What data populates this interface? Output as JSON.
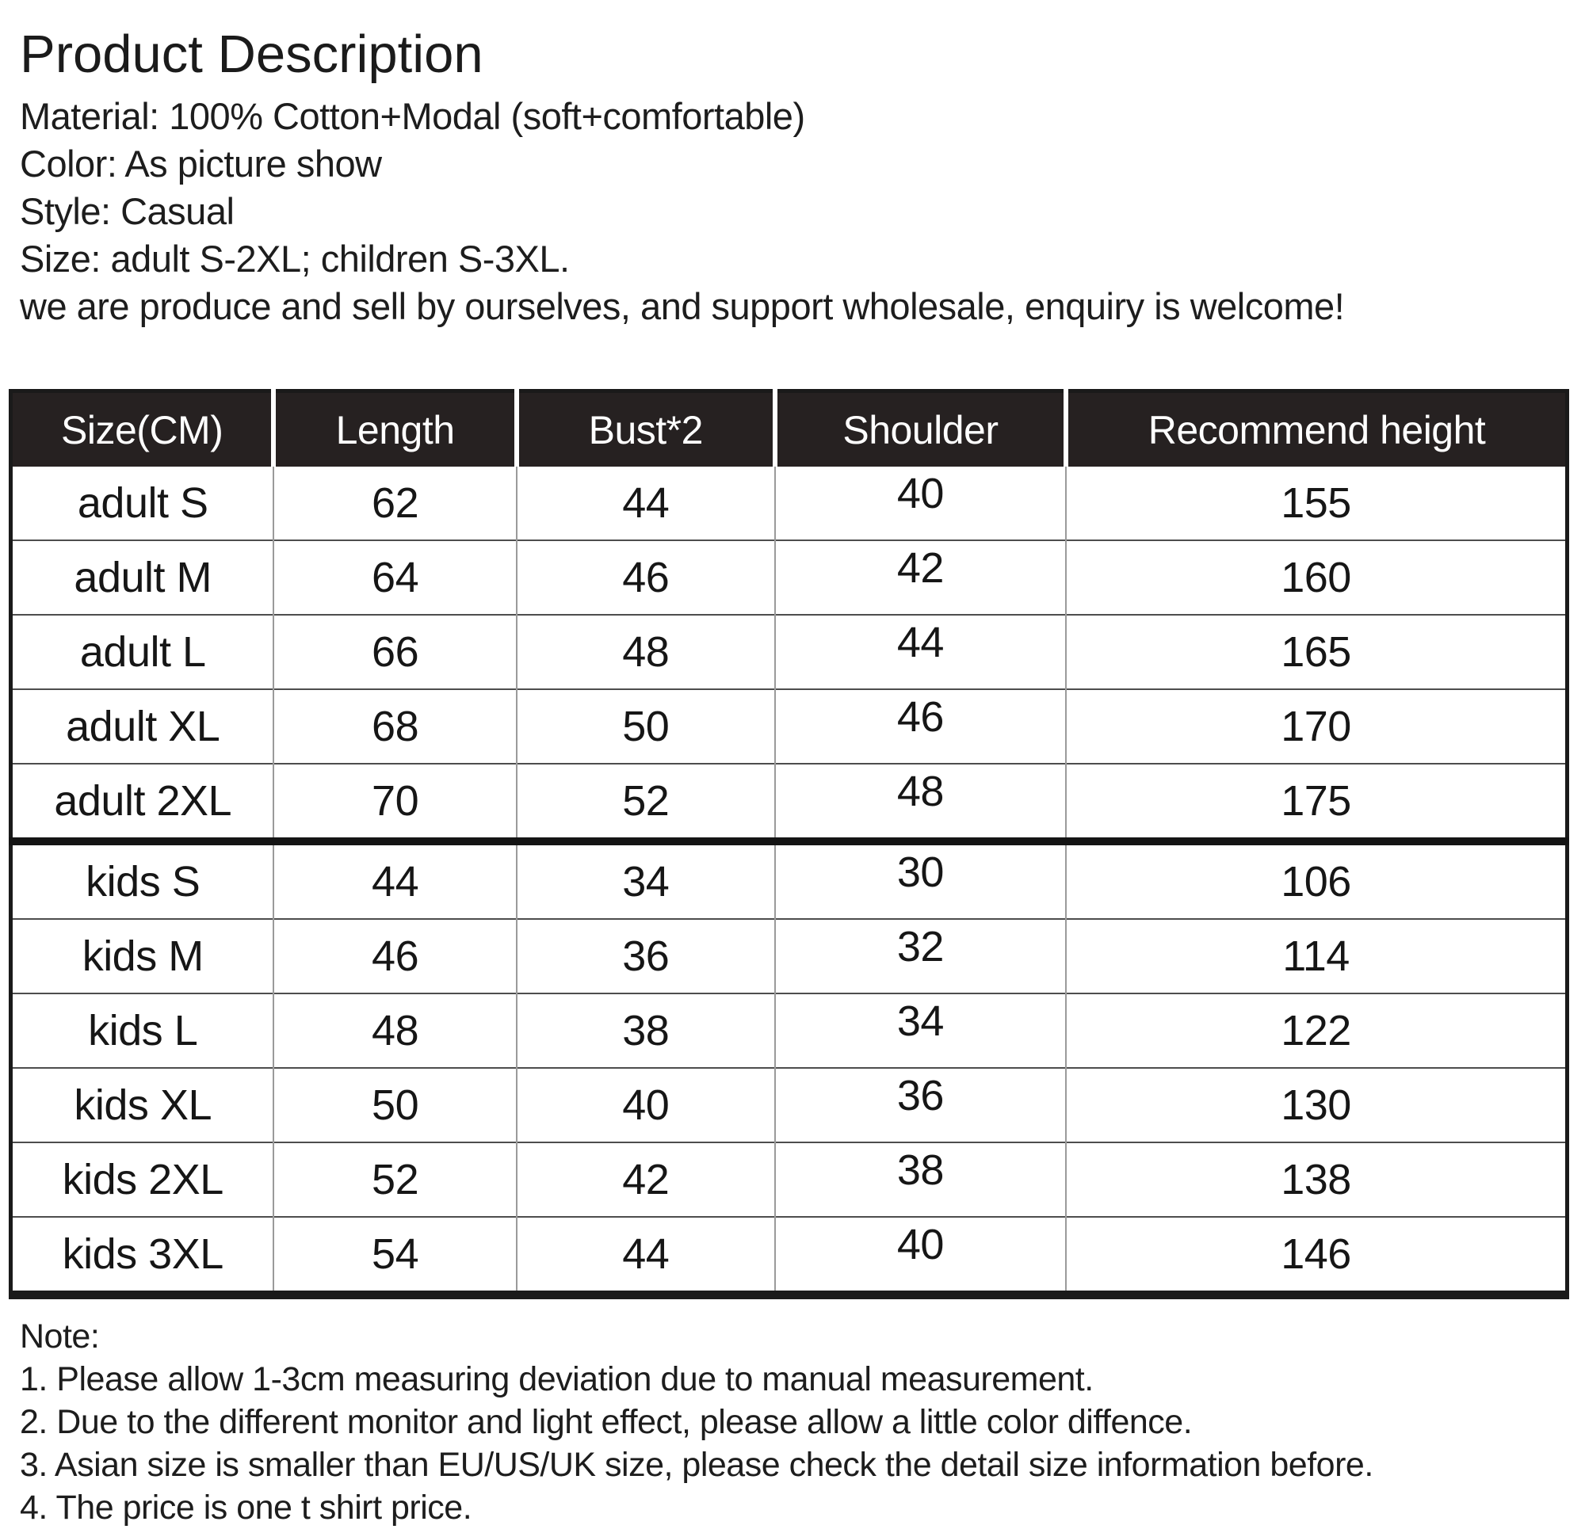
{
  "page": {
    "title": "Product Description",
    "description_lines": [
      "Material: 100% Cotton+Modal (soft+comfortable)",
      "Color: As picture show",
      "Style: Casual",
      "Size: adult S-2XL; children S-3XL.",
      "we are produce and sell by ourselves, and support wholesale, enquiry is welcome!"
    ]
  },
  "size_table": {
    "unit_note": "CM",
    "headers": [
      "Size(CM)",
      "Length",
      "Bust*2",
      "Shoulder",
      "Recommend height"
    ],
    "column_keys": [
      "size",
      "length",
      "bust",
      "shoulder",
      "height"
    ],
    "column_widths_pct": [
      16.9,
      15.6,
      16.6,
      18.7,
      32.2
    ],
    "rows": [
      {
        "group": "adult",
        "size": "adult S",
        "length": "62",
        "bust": "44",
        "shoulder": "40",
        "height": "155"
      },
      {
        "group": "adult",
        "size": "adult M",
        "length": "64",
        "bust": "46",
        "shoulder": "42",
        "height": "160"
      },
      {
        "group": "adult",
        "size": "adult L",
        "length": "66",
        "bust": "48",
        "shoulder": "44",
        "height": "165"
      },
      {
        "group": "adult",
        "size": "adult XL",
        "length": "68",
        "bust": "50",
        "shoulder": "46",
        "height": "170"
      },
      {
        "group": "adult",
        "size": "adult 2XL",
        "length": "70",
        "bust": "52",
        "shoulder": "48",
        "height": "175"
      },
      {
        "group": "kids",
        "size": "kids S",
        "length": "44",
        "bust": "34",
        "shoulder": "30",
        "height": "106"
      },
      {
        "group": "kids",
        "size": "kids M",
        "length": "46",
        "bust": "36",
        "shoulder": "32",
        "height": "114"
      },
      {
        "group": "kids",
        "size": "kids L",
        "length": "48",
        "bust": "38",
        "shoulder": "34",
        "height": "122"
      },
      {
        "group": "kids",
        "size": "kids XL",
        "length": "50",
        "bust": "40",
        "shoulder": "36",
        "height": "130"
      },
      {
        "group": "kids",
        "size": "kids 2XL",
        "length": "52",
        "bust": "42",
        "shoulder": "38",
        "height": "138"
      },
      {
        "group": "kids",
        "size": "kids 3XL",
        "length": "54",
        "bust": "44",
        "shoulder": "40",
        "height": "146"
      }
    ]
  },
  "notes": {
    "heading": "Note:",
    "items": [
      "1. Please allow 1-3cm measuring deviation due to manual measurement.",
      "2. Due to the different monitor and light effect, please allow a little color diffence.",
      "3. Asian size is smaller than EU/US/UK size, please check the detail size information before.",
      "4. The price is one t shirt price."
    ]
  },
  "colors": {
    "background": "#ffffff",
    "text": "#1b1b1b",
    "table_header_bg": "#262121",
    "table_header_text": "#ffffff",
    "table_outer_border": "#1a1a1a",
    "row_divider": "#4d4d4d",
    "column_divider": "#9a9a9a",
    "section_divider": "#141414"
  }
}
